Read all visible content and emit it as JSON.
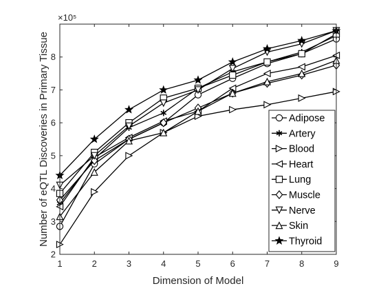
{
  "chart_data": {
    "type": "line",
    "xlabel": "Dimension of Model",
    "ylabel": "Number of eQTL Discoveries in Primary Tissue",
    "y_exponent_label": "×10⁵",
    "x": [
      1,
      2,
      3,
      4,
      5,
      6,
      7,
      8,
      9
    ],
    "xlim": [
      1,
      9
    ],
    "ylim": [
      2,
      9
    ],
    "x_ticks": [
      "1",
      "2",
      "3",
      "4",
      "5",
      "6",
      "7",
      "8",
      "9"
    ],
    "y_ticks": [
      "2",
      "3",
      "4",
      "5",
      "6",
      "7",
      "8"
    ],
    "grid": false,
    "legend_position": "lower-right",
    "series": [
      {
        "name": "Adipose",
        "marker": "circle",
        "values": [
          2.85,
          4.75,
          5.5,
          6.0,
          6.85,
          7.35,
          7.8,
          8.1,
          8.55
        ]
      },
      {
        "name": "Artery",
        "marker": "asterisk",
        "values": [
          3.55,
          4.9,
          5.85,
          6.3,
          7.05,
          7.55,
          7.85,
          8.15,
          8.65
        ]
      },
      {
        "name": "Blood",
        "marker": "triangle-right",
        "values": [
          2.3,
          3.9,
          5.0,
          5.7,
          6.2,
          6.4,
          6.55,
          6.75,
          6.95
        ]
      },
      {
        "name": "Heart",
        "marker": "triangle-left",
        "values": [
          3.45,
          4.95,
          5.55,
          6.05,
          6.35,
          7.05,
          7.5,
          7.7,
          8.05
        ]
      },
      {
        "name": "Lung",
        "marker": "square",
        "values": [
          3.85,
          5.1,
          6.0,
          6.75,
          7.05,
          7.45,
          7.85,
          8.1,
          8.7
        ]
      },
      {
        "name": "Muscle",
        "marker": "diamond",
        "values": [
          3.65,
          4.85,
          5.5,
          6.0,
          6.45,
          6.9,
          7.2,
          7.45,
          7.75
        ]
      },
      {
        "name": "Nerve",
        "marker": "triangle-down",
        "values": [
          4.1,
          5.0,
          5.9,
          6.6,
          7.0,
          7.65,
          8.15,
          8.4,
          8.8
        ]
      },
      {
        "name": "Skin",
        "marker": "triangle-up",
        "values": [
          3.15,
          4.5,
          5.45,
          5.7,
          6.35,
          6.9,
          7.25,
          7.5,
          7.9
        ]
      },
      {
        "name": "Thyroid",
        "marker": "pentagram",
        "values": [
          4.4,
          5.5,
          6.4,
          7.0,
          7.3,
          7.85,
          8.25,
          8.5,
          8.8
        ]
      }
    ]
  }
}
